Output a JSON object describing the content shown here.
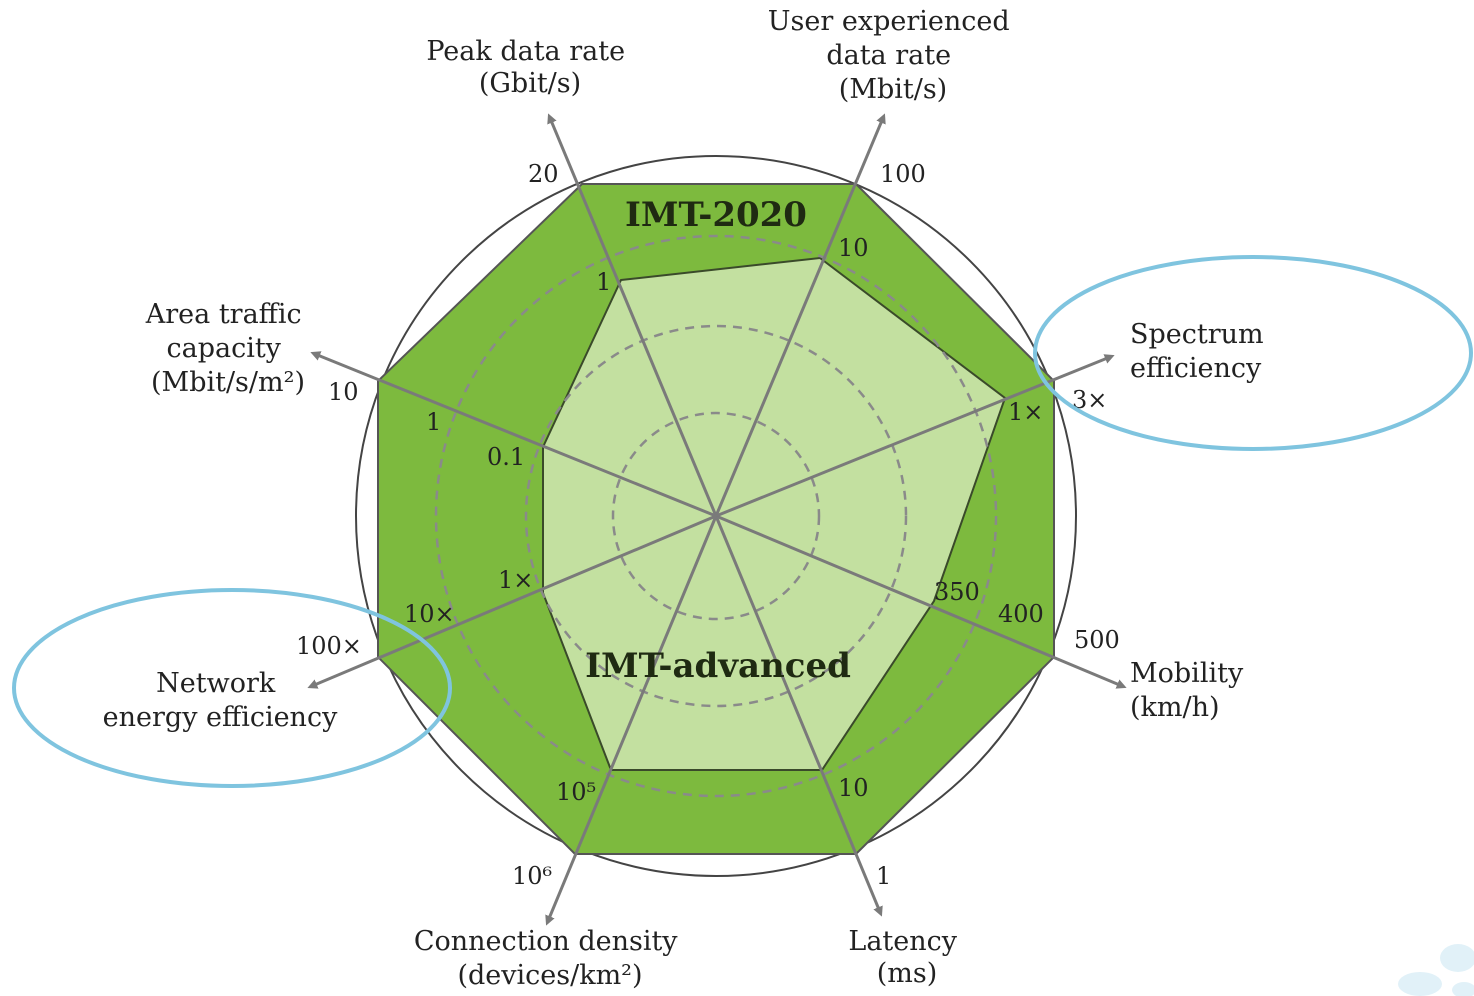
{
  "colors": {
    "imt2020_fill": "#7dba3e",
    "imt_advanced_fill": "#c3e0a0",
    "outer_circle": "#444444",
    "ring_dashed": "#8a8a8a",
    "axis": "#7a7a7a",
    "highlight": "#7fc4df"
  },
  "chart_data": {
    "type": "radar",
    "series": [
      {
        "name": "IMT-2020"
      },
      {
        "name": "IMT-advanced"
      }
    ],
    "axes": [
      {
        "key": "peak",
        "title": [
          "Peak data rate",
          "(Gbit/s)"
        ],
        "imt2020": "20",
        "imt_advanced": "1"
      },
      {
        "key": "user",
        "title": [
          "User experienced",
          "data rate",
          "(Mbit/s)"
        ],
        "imt2020": "100",
        "imt_advanced": "10"
      },
      {
        "key": "spectrum",
        "title": [
          "Spectrum",
          "efficiency"
        ],
        "imt2020": "3×",
        "imt_advanced": "1×",
        "highlighted": true
      },
      {
        "key": "mobility",
        "title": [
          "Mobility",
          "(km/h)"
        ],
        "imt2020": "500",
        "imt_advanced": "350",
        "extra_tick": "400"
      },
      {
        "key": "latency",
        "title": [
          "Latency",
          "(ms)"
        ],
        "imt2020": "1",
        "imt_advanced": "10"
      },
      {
        "key": "density",
        "title": [
          "Connection density",
          "(devices/km²)"
        ],
        "imt2020": "10⁶",
        "imt_advanced": "10⁵"
      },
      {
        "key": "energy",
        "title": [
          "Network",
          "energy efficiency"
        ],
        "imt2020": "100×",
        "imt_advanced": "1×",
        "extra_tick": "10×",
        "highlighted": true
      },
      {
        "key": "area",
        "title": [
          "Area traffic",
          "capacity",
          "(Mbit/s/m²)"
        ],
        "imt2020": "10",
        "imt_advanced": "0.1",
        "extra_tick": "1"
      }
    ]
  }
}
